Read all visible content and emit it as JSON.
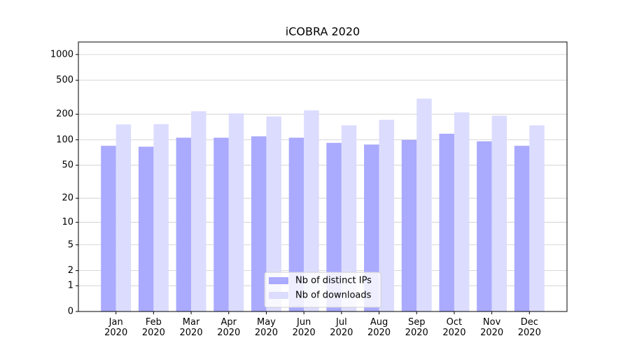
{
  "chart_data": {
    "type": "bar",
    "title": "iCOBRA 2020",
    "categories": [
      "Jan 2020",
      "Feb 2020",
      "Mar 2020",
      "Apr 2020",
      "May 2020",
      "Jun 2020",
      "Jul 2020",
      "Aug 2020",
      "Sep 2020",
      "Oct 2020",
      "Nov 2020",
      "Dec 2020"
    ],
    "series": [
      {
        "name": "Nb of distinct IPs",
        "color": "#aaaaff",
        "values": [
          85,
          83,
          106,
          106,
          110,
          106,
          92,
          88,
          100,
          118,
          96,
          85
        ]
      },
      {
        "name": "Nb of downloads",
        "color": "#dcdcff",
        "values": [
          152,
          153,
          217,
          205,
          188,
          222,
          148,
          172,
          305,
          210,
          192,
          148
        ]
      }
    ],
    "yscale": "log1p",
    "ylim": [
      0,
      1400
    ],
    "yticks": [
      0,
      1,
      2,
      5,
      10,
      20,
      50,
      100,
      200,
      500,
      1000
    ],
    "grid": true,
    "legend": "lower center"
  }
}
